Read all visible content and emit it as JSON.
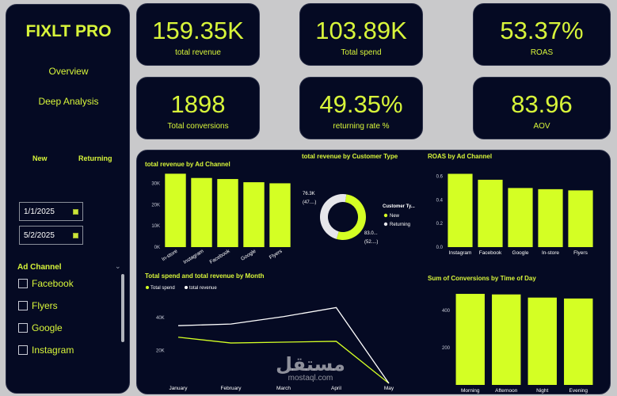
{
  "sidebar": {
    "brand": "FIXLT PRO",
    "nav": [
      "Overview",
      "Deep Analysis"
    ],
    "segments": [
      "New",
      "Returning"
    ],
    "date_from": "1/1/2025",
    "date_to": "5/2/2025",
    "filter_title": "Ad Channel",
    "filter_items": [
      "Facebook",
      "Flyers",
      "Google",
      "Instagram"
    ]
  },
  "kpis": [
    {
      "value": "159.35K",
      "label": "total revenue"
    },
    {
      "value": "103.89K",
      "label": "Total spend"
    },
    {
      "value": "53.37%",
      "label": "ROAS"
    },
    {
      "value": "1898",
      "label": "Total conversions"
    },
    {
      "value": "49.35%",
      "label": "returning rate %"
    },
    {
      "value": "83.96",
      "label": "AOV"
    }
  ],
  "colors": {
    "accent": "#d8f53a",
    "bar": "#d4ff24",
    "bg": "#050a23",
    "donut_grey": "#e6e6ea"
  },
  "watermark": {
    "arabic": "مستقل",
    "latin": "mostaql.com"
  },
  "chart_data": [
    {
      "type": "bar",
      "title": "total revenue by Ad Channel",
      "categories": [
        "In-store",
        "Instagram",
        "Facebook",
        "Google",
        "Flyers"
      ],
      "values": [
        34500,
        32500,
        32000,
        30500,
        30000
      ],
      "ylim": [
        0,
        35000
      ],
      "yticks": [
        "0K",
        "10K",
        "20K",
        "30K"
      ]
    },
    {
      "type": "pie",
      "title": "total revenue by Customer Type",
      "legend_title": "Customer Ty...",
      "legend": [
        "New",
        "Returning"
      ],
      "values": [
        83000,
        76300
      ],
      "data_labels": [
        [
          "83.0...",
          "(52....)"
        ],
        [
          "76.3K",
          "(47....)"
        ]
      ]
    },
    {
      "type": "bar",
      "title": "ROAS by Ad Channel",
      "categories": [
        "Instagram",
        "Facebook",
        "Google",
        "In-store",
        "Flyers"
      ],
      "values": [
        0.62,
        0.57,
        0.5,
        0.49,
        0.48
      ],
      "ylim": [
        0,
        0.65
      ],
      "yticks": [
        "0.0",
        "0.2",
        "0.4",
        "0.6"
      ]
    },
    {
      "type": "line",
      "title": "Total spend and total revenue by Month",
      "categories": [
        "January",
        "February",
        "March",
        "April",
        "May"
      ],
      "series": [
        {
          "name": "Total spend",
          "values": [
            28000,
            24500,
            25000,
            25500,
            0
          ]
        },
        {
          "name": "total revenue",
          "values": [
            35000,
            36000,
            40500,
            46000,
            0
          ]
        }
      ],
      "ylim": [
        0,
        50000
      ],
      "yticks": [
        "20K",
        "40K"
      ]
    },
    {
      "type": "bar",
      "title": "Sum of Conversions by Time of Day",
      "categories": [
        "Morning",
        "Afternoon",
        "Night",
        "Evening"
      ],
      "values": [
        490,
        487,
        470,
        465
      ],
      "ylim": [
        0,
        520
      ],
      "yticks": [
        "200",
        "400"
      ]
    }
  ]
}
